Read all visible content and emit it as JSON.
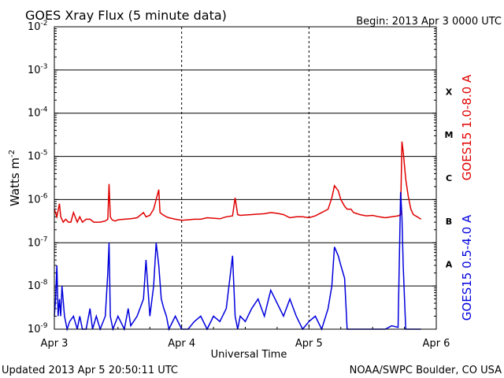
{
  "chart_data": {
    "type": "line",
    "title": "GOES Xray Flux (5 minute data)",
    "begin_label": "Begin:  2013 Apr 3 0000 UTC",
    "ylabel": "Watts m",
    "ylabel_sup": "-2",
    "xlabel": "Universal Time",
    "updated_label": "Updated 2013 Apr  5 20:50:11 UTC",
    "credit_label": "NOAA/SWPC Boulder, CO USA",
    "y_scale": "log",
    "ylim": [
      1e-09,
      0.01
    ],
    "y_ticks": [
      {
        "base": "10",
        "exp": "-2"
      },
      {
        "base": "10",
        "exp": "-3"
      },
      {
        "base": "10",
        "exp": "-4"
      },
      {
        "base": "10",
        "exp": "-5"
      },
      {
        "base": "10",
        "exp": "-6"
      },
      {
        "base": "10",
        "exp": "-7"
      },
      {
        "base": "10",
        "exp": "-8"
      },
      {
        "base": "10",
        "exp": "-9"
      }
    ],
    "x_ticks": [
      "Apr 3",
      "Apr 4",
      "Apr 5",
      "Apr 6"
    ],
    "flare_classes": [
      "X",
      "M",
      "C",
      "B",
      "A"
    ],
    "grid": true,
    "series": [
      {
        "name": "GOES15 1.0-8.0 A",
        "color": "#e00000",
        "x_days": [
          0.0,
          0.02,
          0.04,
          0.05,
          0.07,
          0.09,
          0.11,
          0.13,
          0.15,
          0.18,
          0.2,
          0.22,
          0.25,
          0.28,
          0.31,
          0.33,
          0.36,
          0.4,
          0.42,
          0.43,
          0.44,
          0.45,
          0.46,
          0.48,
          0.5,
          0.55,
          0.6,
          0.65,
          0.7,
          0.72,
          0.75,
          0.78,
          0.8,
          0.82,
          0.83,
          0.85,
          0.88,
          0.9,
          0.95,
          1.0,
          1.05,
          1.1,
          1.15,
          1.2,
          1.25,
          1.3,
          1.35,
          1.4,
          1.42,
          1.44,
          1.46,
          1.5,
          1.55,
          1.6,
          1.65,
          1.7,
          1.75,
          1.8,
          1.85,
          1.9,
          1.95,
          2.0,
          2.05,
          2.1,
          2.15,
          2.18,
          2.2,
          2.23,
          2.25,
          2.28,
          2.3,
          2.33,
          2.35,
          2.4,
          2.45,
          2.5,
          2.55,
          2.6,
          2.65,
          2.7,
          2.72,
          2.73,
          2.74,
          2.76,
          2.78,
          2.8,
          2.82,
          2.85,
          2.88
        ],
        "values": [
          6e-07,
          4e-07,
          8e-07,
          4e-07,
          3e-07,
          3.5e-07,
          3e-07,
          3e-07,
          5e-07,
          3e-07,
          4e-07,
          3e-07,
          3.5e-07,
          3.5e-07,
          3e-07,
          3e-07,
          3e-07,
          3.2e-07,
          3.5e-07,
          2.3e-06,
          4e-07,
          3.5e-07,
          3.3e-07,
          3.2e-07,
          3.4e-07,
          3.5e-07,
          3.6e-07,
          3.8e-07,
          5e-07,
          4e-07,
          4.3e-07,
          6e-07,
          1e-06,
          1.7e-06,
          5e-07,
          4.5e-07,
          4e-07,
          3.8e-07,
          3.5e-07,
          3.3e-07,
          3.4e-07,
          3.5e-07,
          3.5e-07,
          3.8e-07,
          3.7e-07,
          3.6e-07,
          4e-07,
          4.2e-07,
          1.1e-06,
          4.5e-07,
          4.3e-07,
          4.4e-07,
          4.5e-07,
          4.6e-07,
          4.7e-07,
          5e-07,
          4.8e-07,
          4.5e-07,
          3.8e-07,
          4e-07,
          4e-07,
          3.8e-07,
          4.2e-07,
          5e-07,
          6e-07,
          1.1e-06,
          2.1e-06,
          1.6e-06,
          1e-06,
          7e-07,
          6e-07,
          6e-07,
          5e-07,
          4.5e-07,
          4.2e-07,
          4.3e-07,
          4e-07,
          3.8e-07,
          4e-07,
          4.2e-07,
          4.5e-07,
          2.2e-05,
          1.3e-05,
          3e-06,
          1.2e-06,
          6e-07,
          4.5e-07,
          4e-07,
          3.5e-07
        ]
      },
      {
        "name": "GOES15 0.5-4.0 A",
        "color": "#0000dd",
        "x_days": [
          0.0,
          0.01,
          0.02,
          0.03,
          0.04,
          0.05,
          0.06,
          0.08,
          0.1,
          0.12,
          0.15,
          0.18,
          0.2,
          0.22,
          0.25,
          0.28,
          0.3,
          0.33,
          0.36,
          0.4,
          0.42,
          0.43,
          0.44,
          0.46,
          0.5,
          0.55,
          0.58,
          0.6,
          0.65,
          0.7,
          0.72,
          0.75,
          0.78,
          0.8,
          0.82,
          0.84,
          0.86,
          0.88,
          0.9,
          0.95,
          1.0,
          1.05,
          1.1,
          1.15,
          1.2,
          1.25,
          1.3,
          1.35,
          1.4,
          1.42,
          1.44,
          1.46,
          1.5,
          1.55,
          1.6,
          1.65,
          1.7,
          1.75,
          1.8,
          1.85,
          1.9,
          1.95,
          2.0,
          2.05,
          2.1,
          2.15,
          2.18,
          2.2,
          2.23,
          2.25,
          2.28,
          2.3,
          2.33,
          2.35,
          2.4,
          2.45,
          2.5,
          2.55,
          2.6,
          2.65,
          2.7,
          2.72,
          2.73,
          2.74,
          2.76,
          2.78,
          2.8,
          2.82,
          2.85,
          2.88
        ],
        "values": [
          2e-09,
          5e-09,
          3e-08,
          2e-09,
          5e-09,
          2e-09,
          1e-08,
          2e-09,
          1e-09,
          1.5e-09,
          2e-09,
          1e-09,
          2e-09,
          1e-09,
          1e-09,
          3e-09,
          1e-09,
          2e-09,
          1e-09,
          2e-09,
          2e-08,
          1e-07,
          2e-09,
          1e-09,
          2e-09,
          1e-09,
          3e-09,
          1.2e-09,
          2e-09,
          5e-09,
          4e-08,
          2e-09,
          1e-08,
          1e-07,
          3e-08,
          5e-09,
          3e-09,
          2e-09,
          1e-09,
          2e-09,
          1e-09,
          1e-09,
          1.5e-09,
          2e-09,
          1e-09,
          2e-09,
          1.5e-09,
          3e-09,
          5e-08,
          2e-09,
          1e-09,
          2e-09,
          1.5e-09,
          3e-09,
          5e-09,
          2e-09,
          8e-09,
          4e-09,
          2e-09,
          5e-09,
          2e-09,
          1e-09,
          1.5e-09,
          2e-09,
          1e-09,
          3e-09,
          1e-08,
          8e-08,
          5e-08,
          3e-08,
          1.5e-08,
          1e-09,
          1e-09,
          1e-09,
          1e-09,
          1e-09,
          1e-09,
          1e-09,
          1e-09,
          1.2e-09,
          1.1e-09,
          1.5e-06,
          4e-07,
          3e-08,
          1e-09,
          1e-09,
          1e-09,
          1e-09,
          1e-09,
          1e-09
        ]
      }
    ]
  }
}
